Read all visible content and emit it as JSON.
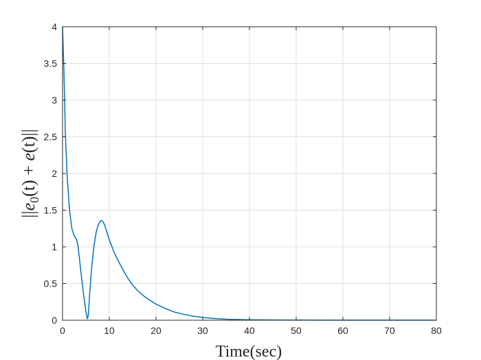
{
  "chart_data": {
    "type": "line",
    "title": "",
    "xlabel": "Time(sec)",
    "ylabel": "||e_0(t) + e(t)||",
    "ylabel_display": {
      "prefix": "||",
      "base": "e",
      "subscript": "0",
      "middle": "(t) + ",
      "base2": "e",
      "suffix": "(t)||"
    },
    "xlim": [
      0,
      80
    ],
    "ylim": [
      0,
      4
    ],
    "xticks": [
      0,
      10,
      20,
      30,
      40,
      50,
      60,
      70,
      80
    ],
    "yticks": [
      0,
      0.5,
      1,
      1.5,
      2,
      2.5,
      3,
      3.5,
      4
    ],
    "xtick_labels": [
      "0",
      "10",
      "20",
      "30",
      "40",
      "50",
      "60",
      "70",
      "80"
    ],
    "ytick_labels": [
      "0",
      "0.5",
      "1",
      "1.5",
      "2",
      "2.5",
      "3",
      "3.5",
      "4"
    ],
    "grid": true,
    "color": "#0072bd",
    "series": [
      {
        "x": [
          0,
          0.3,
          0.6,
          1.0,
          1.5,
          2.0,
          2.5,
          3.0,
          3.3,
          3.6,
          4.0,
          4.5,
          5.0,
          5.3,
          5.5,
          5.8,
          6.2,
          6.7,
          7.2,
          7.7,
          8.2,
          8.6,
          9.0,
          9.5,
          10,
          11,
          12,
          13,
          14,
          15,
          16,
          17,
          18,
          19,
          20,
          22,
          24,
          26,
          28,
          30,
          32,
          34,
          36,
          38,
          40,
          45,
          50,
          60,
          70,
          80
        ],
        "y": [
          4.0,
          3.4,
          2.55,
          1.95,
          1.5,
          1.25,
          1.15,
          1.1,
          1.02,
          0.85,
          0.62,
          0.35,
          0.12,
          0.02,
          0.06,
          0.35,
          0.7,
          1.0,
          1.2,
          1.31,
          1.36,
          1.35,
          1.3,
          1.2,
          1.1,
          0.93,
          0.8,
          0.68,
          0.57,
          0.48,
          0.41,
          0.35,
          0.3,
          0.26,
          0.22,
          0.16,
          0.11,
          0.08,
          0.055,
          0.038,
          0.026,
          0.018,
          0.012,
          0.009,
          0.006,
          0.003,
          0.002,
          0.001,
          0.001,
          0.001
        ]
      }
    ]
  }
}
